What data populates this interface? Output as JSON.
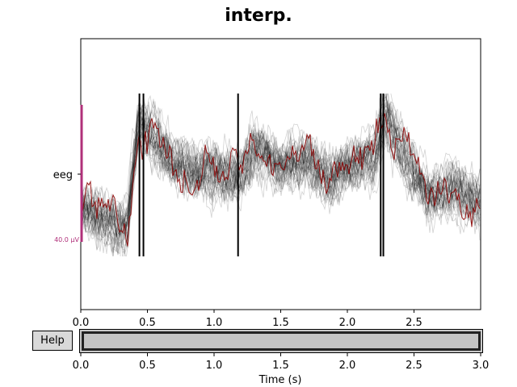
{
  "figure": {
    "title": "interp."
  },
  "channel": {
    "label": "eeg",
    "scale_label": "40.0 µV"
  },
  "help_button": {
    "label": "Help"
  },
  "colors": {
    "trace": "#000000",
    "highlight_trace": "#8b0000",
    "scale_bar": "#b0307a",
    "scroll_bg": "#c9c9c9",
    "button_bg": "#d9d9d9"
  },
  "chart_data": {
    "type": "line",
    "title": "interp.",
    "xlabel": "",
    "ylabel": "eeg",
    "xlim": [
      0.0,
      3.0
    ],
    "x_ticks": [
      "0.0",
      "0.5",
      "1.0",
      "1.5",
      "2.0",
      "2.5"
    ],
    "annotations": [
      "40.0 µV"
    ],
    "description_of_series": "many overlaid interpolated EEG traces (black) with one highlighted trace (dark red)"
  },
  "scroll_axis": {
    "xlabel": "Time (s)",
    "xlim": [
      0.0,
      3.0
    ],
    "x_ticks": [
      "0.0",
      "0.5",
      "1.0",
      "1.5",
      "2.0",
      "2.5",
      "3.0"
    ]
  }
}
